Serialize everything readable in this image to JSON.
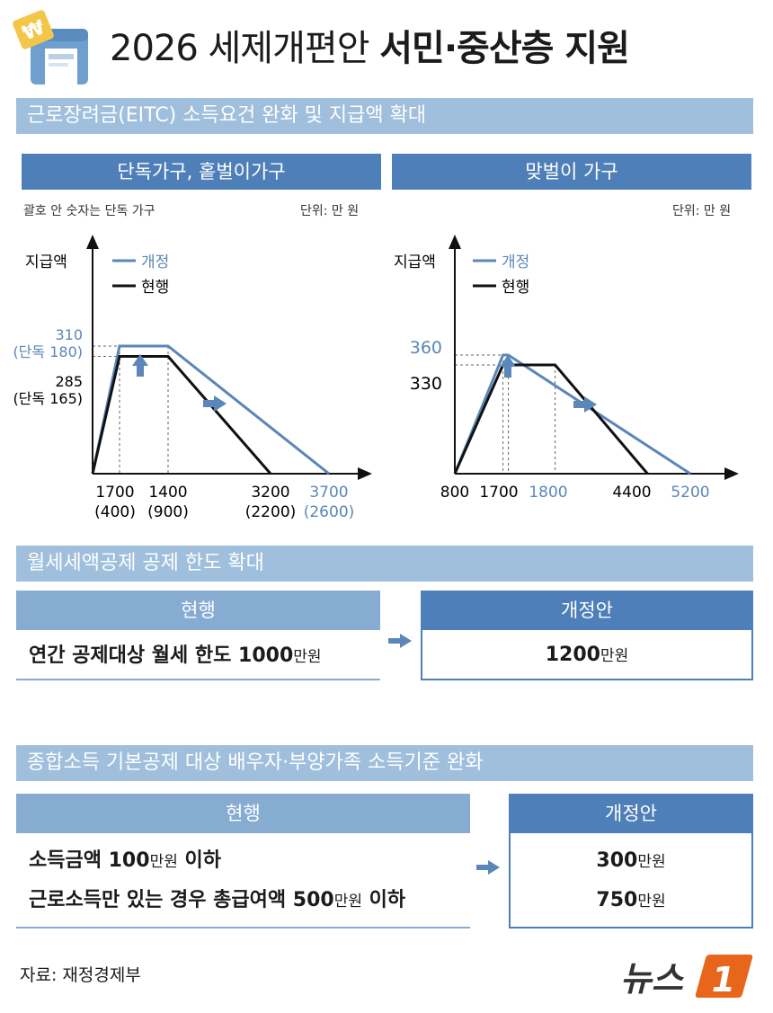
{
  "title": {
    "light": "2026 세제개편안",
    "bold": "서민·중산층 지원"
  },
  "icons": {
    "header": "tax-coin-building-icon",
    "arrow": "right-arrow-icon"
  },
  "colors": {
    "band": "#9fbfdc",
    "dark_blue": "#4f7fb8",
    "mid_blue": "#86acd2",
    "revised_line": "#5b86b9",
    "current_line": "#111111",
    "logo_orange": "#e8661c"
  },
  "eitc": {
    "band": "근로장려금(EITC) 소득요건 완화 및 지급액 확대",
    "single": {
      "header": "단독가구, 홑벌이가구",
      "note_left": "괄호 안 숫자는 단독 가구",
      "unit": "단위: 만 원"
    },
    "dual": {
      "header": "맞벌이 가구",
      "unit": "단위: 만 원"
    }
  },
  "chart_data": [
    {
      "type": "line",
      "ylabel": "지급액",
      "legend": [
        "개정",
        "현행"
      ],
      "legend_position": "top-left",
      "series": [
        {
          "name": "개정",
          "x_labels": [
            "0",
            "1700",
            "1400",
            "3700"
          ],
          "values": [
            0,
            310,
            310,
            0
          ]
        },
        {
          "name": "현행",
          "x_labels": [
            "0",
            "1700",
            "1400",
            "3200"
          ],
          "values": [
            0,
            285,
            285,
            0
          ]
        }
      ],
      "y_ticks": [
        {
          "value": "310",
          "sub": "(단독 180)"
        },
        {
          "value": "285",
          "sub": "(단독 165)"
        }
      ],
      "x_ticks": [
        {
          "value": "1700",
          "sub": "(400)"
        },
        {
          "value": "1400",
          "sub": "(900)"
        },
        {
          "value": "3200",
          "sub": "(2200)"
        },
        {
          "value": "3700",
          "sub": "(2600)"
        }
      ]
    },
    {
      "type": "line",
      "ylabel": "지급액",
      "legend": [
        "개정",
        "현행"
      ],
      "legend_position": "top-left",
      "series": [
        {
          "name": "개정",
          "x": [
            800,
            1700,
            1800,
            5200
          ],
          "values": [
            0,
            360,
            360,
            0
          ]
        },
        {
          "name": "현행",
          "x": [
            800,
            1700,
            1700,
            4400
          ],
          "values": [
            0,
            330,
            330,
            0
          ]
        }
      ],
      "y_ticks": [
        "360",
        "330"
      ],
      "x_ticks": [
        "800",
        "1700",
        "1800",
        "4400",
        "5200"
      ]
    }
  ],
  "rent": {
    "band": "월세세액공제 공제 한도 확대",
    "current_header": "현행",
    "revised_header": "개정안",
    "current_text": "연간 공제대상 월세 한도 ",
    "current_amount": "1000",
    "unit": "만원",
    "revised_amount": "1200"
  },
  "comprehensive": {
    "band": "종합소득 기본공제 대상 배우자·부양가족 소득기준 완화",
    "current_header": "현행",
    "revised_header": "개정안",
    "rows": [
      {
        "pre": "소득금액 ",
        "amount": "100",
        "unit": "만원",
        "post": " 이하",
        "revised_amount": "300"
      },
      {
        "pre": "근로소득만 있는 경우 총급여액 ",
        "amount": "500",
        "unit": "만원",
        "post": " 이하",
        "revised_amount": "750"
      }
    ]
  },
  "source": "자료: 재정경제부",
  "logo": {
    "text": "뉴스",
    "num": "1"
  }
}
